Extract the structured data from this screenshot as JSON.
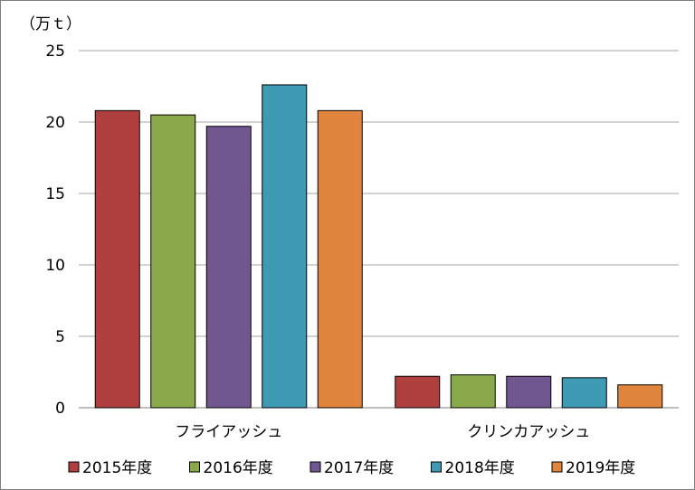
{
  "chart_data": {
    "type": "bar",
    "title": "",
    "ylabel": "（万ｔ）",
    "xlabel": "",
    "ylim": [
      0,
      25
    ],
    "yticks": [
      0,
      5,
      10,
      15,
      20,
      25
    ],
    "grid": true,
    "legend_position": "bottom",
    "categories": [
      "フライアッシュ",
      "クリンカアッシュ"
    ],
    "series": [
      {
        "name": "2015年度",
        "color": "#b0403f",
        "values": [
          20.8,
          2.2
        ]
      },
      {
        "name": "2016年度",
        "color": "#8aa94b",
        "values": [
          20.5,
          2.3
        ]
      },
      {
        "name": "2017年度",
        "color": "#71578f",
        "values": [
          19.7,
          2.2
        ]
      },
      {
        "name": "2018年度",
        "color": "#3e9bb3",
        "values": [
          22.6,
          2.1
        ]
      },
      {
        "name": "2019年度",
        "color": "#e0853e",
        "values": [
          20.8,
          1.6
        ]
      }
    ]
  }
}
